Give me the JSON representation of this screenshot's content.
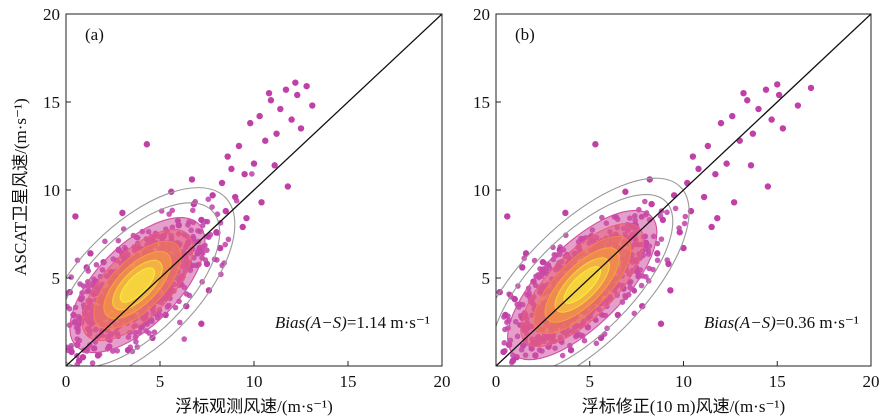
{
  "figure": {
    "ylabel": "ASCAT卫星风速/(m·s⁻¹)"
  },
  "chart_data": [
    {
      "type": "scatter",
      "panel_label": "(a)",
      "xlabel": "浮标观测风速/(m·s⁻¹)",
      "ylabel": "ASCAT卫星风速/(m·s⁻¹)",
      "xlim": [
        0,
        20
      ],
      "ylim": [
        0,
        20
      ],
      "xticks": [
        0,
        5,
        10,
        15,
        20
      ],
      "yticks": [
        5,
        10,
        15,
        20
      ],
      "annotation": {
        "italic": "Bias(A−S)",
        "value": "=1.14 m·s⁻¹"
      },
      "reference_line": "y = x",
      "density_center": [
        3.8,
        4.6
      ],
      "point_color": "#c040a8",
      "density_colors": [
        "#f7ec3a",
        "#f5a23a",
        "#e8607a",
        "#c84aa0"
      ],
      "samples": [
        [
          0.3,
          0.8
        ],
        [
          0.6,
          1.2
        ],
        [
          0.9,
          0.5
        ],
        [
          1.2,
          2.1
        ],
        [
          0.4,
          2.9
        ],
        [
          0.8,
          3.8
        ],
        [
          1.5,
          1.0
        ],
        [
          1.8,
          2.6
        ],
        [
          2.1,
          3.2
        ],
        [
          2.4,
          1.8
        ],
        [
          0.2,
          4.2
        ],
        [
          0.5,
          8.5
        ],
        [
          1.1,
          5.6
        ],
        [
          1.6,
          4.8
        ],
        [
          2.0,
          5.9
        ],
        [
          2.6,
          4.0
        ],
        [
          2.9,
          2.7
        ],
        [
          3.1,
          6.3
        ],
        [
          3.4,
          3.1
        ],
        [
          3.7,
          5.4
        ],
        [
          4.0,
          2.2
        ],
        [
          4.2,
          4.7
        ],
        [
          4.5,
          6.8
        ],
        [
          4.8,
          3.7
        ],
        [
          5.0,
          5.3
        ],
        [
          5.2,
          7.4
        ],
        [
          5.5,
          4.4
        ],
        [
          5.8,
          6.1
        ],
        [
          6.0,
          8.0
        ],
        [
          6.2,
          5.1
        ],
        [
          6.5,
          7.0
        ],
        [
          6.8,
          9.2
        ],
        [
          7.0,
          6.4
        ],
        [
          7.2,
          8.3
        ],
        [
          7.5,
          5.8
        ],
        [
          7.8,
          9.7
        ],
        [
          8.0,
          7.6
        ],
        [
          8.3,
          10.4
        ],
        [
          8.5,
          8.8
        ],
        [
          8.8,
          11.2
        ],
        [
          9.0,
          9.6
        ],
        [
          9.2,
          12.5
        ],
        [
          9.5,
          10.9
        ],
        [
          9.8,
          13.8
        ],
        [
          10.0,
          11.5
        ],
        [
          10.3,
          14.2
        ],
        [
          10.6,
          12.8
        ],
        [
          10.9,
          15.1
        ],
        [
          11.2,
          13.2
        ],
        [
          11.4,
          14.6
        ],
        [
          11.7,
          15.7
        ],
        [
          12.0,
          14.0
        ],
        [
          12.3,
          15.4
        ],
        [
          12.5,
          13.5
        ],
        [
          12.8,
          15.9
        ],
        [
          13.1,
          14.8
        ],
        [
          4.3,
          12.6
        ],
        [
          7.2,
          2.4
        ],
        [
          3.0,
          8.7
        ],
        [
          5.6,
          9.9
        ],
        [
          9.4,
          7.9
        ],
        [
          11.8,
          10.2
        ],
        [
          10.8,
          15.5
        ],
        [
          12.2,
          16.1
        ],
        [
          8.6,
          11.9
        ],
        [
          6.7,
          10.6
        ],
        [
          2.8,
          6.6
        ],
        [
          1.3,
          6.4
        ],
        [
          3.3,
          0.9
        ],
        [
          4.6,
          1.6
        ],
        [
          5.3,
          2.9
        ],
        [
          6.4,
          3.4
        ],
        [
          7.6,
          4.3
        ],
        [
          8.2,
          6.7
        ],
        [
          9.6,
          8.4
        ],
        [
          10.4,
          9.3
        ],
        [
          11.1,
          11.4
        ],
        [
          0.7,
          0.3
        ],
        [
          1.7,
          0.6
        ],
        [
          2.3,
          1.1
        ]
      ],
      "density_contours": [
        {
          "rx": 1.2,
          "ry": 0.5,
          "color": "#f7ec3a",
          "fill": "#f7ec3a"
        },
        {
          "rx": 1.7,
          "ry": 0.8,
          "color": "#f5d23a",
          "fill": "#f5d23a"
        },
        {
          "rx": 2.3,
          "ry": 1.1,
          "color": "#f5a23a",
          "fill": "#f5a23a"
        },
        {
          "rx": 3.0,
          "ry": 1.45,
          "color": "#f08050",
          "fill": "#f08050"
        },
        {
          "rx": 3.8,
          "ry": 1.85,
          "color": "#e8607a",
          "fill": "#e8607a"
        },
        {
          "rx": 4.6,
          "ry": 2.3,
          "color": "#d050a0",
          "fill": "#d050a0"
        },
        {
          "rx": 5.6,
          "ry": 2.8,
          "color": "#999999",
          "fill": "none"
        },
        {
          "rx": 6.6,
          "ry": 3.4,
          "color": "#999999",
          "fill": "none"
        }
      ]
    },
    {
      "type": "scatter",
      "panel_label": "(b)",
      "xlabel": "浮标修正(10 m)风速/(m·s⁻¹)",
      "ylabel": "",
      "xlim": [
        0,
        20
      ],
      "ylim": [
        0,
        20
      ],
      "xticks": [
        0,
        5,
        10,
        15,
        20
      ],
      "yticks": [
        5,
        10,
        15,
        20
      ],
      "annotation": {
        "italic": "Bias(A−S)",
        "value": "=0.36 m·s⁻¹"
      },
      "reference_line": "y = x",
      "density_center": [
        4.6,
        4.6
      ],
      "point_color": "#c040a8",
      "density_colors": [
        "#f7ec3a",
        "#f5a23a",
        "#e8607a",
        "#c84aa0"
      ],
      "samples": [
        [
          0.4,
          0.8
        ],
        [
          0.7,
          1.2
        ],
        [
          1.1,
          0.5
        ],
        [
          1.5,
          2.1
        ],
        [
          0.5,
          2.9
        ],
        [
          1.0,
          3.8
        ],
        [
          1.9,
          1.0
        ],
        [
          2.2,
          2.6
        ],
        [
          2.6,
          3.2
        ],
        [
          2.9,
          1.8
        ],
        [
          0.2,
          4.2
        ],
        [
          0.6,
          8.5
        ],
        [
          1.4,
          5.6
        ],
        [
          2.0,
          4.8
        ],
        [
          2.5,
          5.9
        ],
        [
          3.2,
          4.0
        ],
        [
          3.6,
          2.7
        ],
        [
          3.8,
          6.3
        ],
        [
          4.2,
          3.1
        ],
        [
          4.6,
          5.4
        ],
        [
          4.9,
          2.2
        ],
        [
          5.2,
          4.7
        ],
        [
          5.5,
          6.8
        ],
        [
          5.9,
          3.7
        ],
        [
          6.1,
          5.3
        ],
        [
          6.4,
          7.4
        ],
        [
          6.8,
          4.4
        ],
        [
          7.1,
          6.1
        ],
        [
          7.4,
          8.0
        ],
        [
          7.6,
          5.1
        ],
        [
          8.0,
          7.0
        ],
        [
          8.3,
          9.2
        ],
        [
          8.6,
          6.4
        ],
        [
          8.9,
          8.3
        ],
        [
          9.2,
          5.8
        ],
        [
          9.5,
          9.7
        ],
        [
          9.8,
          7.6
        ],
        [
          10.2,
          10.4
        ],
        [
          10.4,
          8.8
        ],
        [
          10.8,
          11.2
        ],
        [
          11.1,
          9.6
        ],
        [
          11.3,
          12.5
        ],
        [
          11.7,
          10.9
        ],
        [
          12.0,
          13.8
        ],
        [
          12.3,
          11.5
        ],
        [
          12.6,
          14.2
        ],
        [
          13.0,
          12.8
        ],
        [
          13.4,
          15.1
        ],
        [
          13.7,
          13.2
        ],
        [
          14.0,
          14.6
        ],
        [
          14.4,
          15.7
        ],
        [
          14.7,
          14.0
        ],
        [
          15.1,
          15.4
        ],
        [
          15.3,
          13.5
        ],
        [
          16.8,
          15.8
        ],
        [
          16.1,
          14.8
        ],
        [
          5.3,
          12.6
        ],
        [
          8.8,
          2.4
        ],
        [
          3.7,
          8.7
        ],
        [
          6.9,
          9.9
        ],
        [
          11.5,
          7.9
        ],
        [
          14.5,
          10.2
        ],
        [
          13.2,
          15.5
        ],
        [
          15.0,
          16.0
        ],
        [
          10.5,
          11.9
        ],
        [
          8.2,
          10.6
        ],
        [
          3.4,
          6.6
        ],
        [
          1.6,
          6.4
        ],
        [
          4.0,
          0.9
        ],
        [
          5.6,
          1.6
        ],
        [
          6.5,
          2.9
        ],
        [
          7.8,
          3.4
        ],
        [
          9.3,
          4.3
        ],
        [
          10.0,
          6.7
        ],
        [
          11.8,
          8.4
        ],
        [
          12.7,
          9.3
        ],
        [
          13.6,
          11.4
        ],
        [
          0.9,
          0.3
        ],
        [
          2.1,
          0.6
        ],
        [
          2.8,
          1.1
        ]
      ],
      "density_contours": [
        {
          "rx": 1.3,
          "ry": 0.5,
          "color": "#f7ec3a",
          "fill": "#f7ec3a"
        },
        {
          "rx": 1.9,
          "ry": 0.8,
          "color": "#f5d23a",
          "fill": "#f5d23a"
        },
        {
          "rx": 2.6,
          "ry": 1.1,
          "color": "#f5a23a",
          "fill": "#f5a23a"
        },
        {
          "rx": 3.4,
          "ry": 1.45,
          "color": "#f08050",
          "fill": "#f08050"
        },
        {
          "rx": 4.3,
          "ry": 1.85,
          "color": "#e8607a",
          "fill": "#e8607a"
        },
        {
          "rx": 5.2,
          "ry": 2.3,
          "color": "#d050a0",
          "fill": "#d050a0"
        },
        {
          "rx": 6.3,
          "ry": 2.8,
          "color": "#999999",
          "fill": "none"
        },
        {
          "rx": 7.4,
          "ry": 3.4,
          "color": "#999999",
          "fill": "none"
        }
      ]
    }
  ]
}
